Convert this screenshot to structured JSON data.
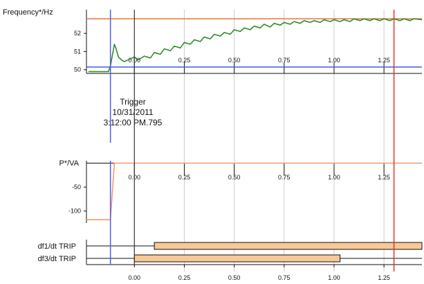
{
  "colors": {
    "frequency_line": "#2e8b2e",
    "upper_limit_line": "#e8743b",
    "lower_limit_line": "#3a5fe0",
    "trigger_marker": "#4b5ce8",
    "cursor_marker": "#e8302a",
    "power_line": "#f59a6a",
    "trip_bar_fill": "#f8c896",
    "grid": "#cccccc",
    "axis": "#111111"
  },
  "trigger": {
    "title": "Trigger",
    "date": "10/31/2011",
    "time": "3:12:00 PM.795",
    "time_s": -0.12
  },
  "cursor_time_s": 1.3,
  "chart_data": [
    {
      "type": "line",
      "ylabel": "Frequency*/Hz",
      "x_range": [
        -0.24,
        1.44
      ],
      "ylim": [
        49.8,
        53.3
      ],
      "yticks": [
        50,
        51,
        52
      ],
      "ytick_labels": [
        "50",
        "51",
        "52"
      ],
      "xticks": [
        0,
        0.25,
        0.5,
        0.75,
        1.0,
        1.25
      ],
      "xtick_labels": [
        "0.00",
        "0.25",
        "0.50",
        "0.75",
        "1.00",
        "1.25"
      ],
      "grid": true,
      "reference_lines": {
        "upper": 52.8,
        "lower": 50.15
      },
      "x": [
        -0.23,
        -0.2,
        -0.17,
        -0.13,
        -0.12,
        -0.11,
        -0.1,
        -0.09,
        -0.08,
        -0.07,
        -0.06,
        -0.05,
        -0.04,
        -0.03,
        -0.02,
        -0.01,
        0,
        0.02,
        0.05,
        0.08,
        0.1,
        0.13,
        0.15,
        0.18,
        0.2,
        0.23,
        0.25,
        0.28,
        0.3,
        0.33,
        0.35,
        0.38,
        0.4,
        0.43,
        0.45,
        0.48,
        0.5,
        0.53,
        0.55,
        0.58,
        0.6,
        0.63,
        0.65,
        0.68,
        0.7,
        0.73,
        0.75,
        0.78,
        0.8,
        0.83,
        0.85,
        0.88,
        0.9,
        0.93,
        0.95,
        0.98,
        1.0,
        1.03,
        1.05,
        1.08,
        1.1,
        1.13,
        1.15,
        1.18,
        1.2,
        1.23,
        1.25,
        1.28,
        1.3,
        1.33,
        1.35,
        1.38,
        1.4,
        1.44
      ],
      "y": [
        49.9,
        49.9,
        49.9,
        49.9,
        50.2,
        50.8,
        51.4,
        51.1,
        50.7,
        50.6,
        50.5,
        50.45,
        50.5,
        50.55,
        50.6,
        50.65,
        50.7,
        50.55,
        50.75,
        50.65,
        50.95,
        50.85,
        51.15,
        51.05,
        51.3,
        51.2,
        51.5,
        51.4,
        51.65,
        51.55,
        51.8,
        51.7,
        51.95,
        51.85,
        52.05,
        51.95,
        52.2,
        52.1,
        52.3,
        52.2,
        52.4,
        52.3,
        52.5,
        52.35,
        52.55,
        52.45,
        52.6,
        52.5,
        52.65,
        52.55,
        52.7,
        52.6,
        52.7,
        52.6,
        52.75,
        52.65,
        52.75,
        52.65,
        52.75,
        52.65,
        52.8,
        52.7,
        52.8,
        52.7,
        52.8,
        52.7,
        52.8,
        52.7,
        52.8,
        52.7,
        52.8,
        52.7,
        52.8,
        52.75
      ]
    },
    {
      "type": "line",
      "ylabel": "P*/VA",
      "x_range": [
        -0.24,
        1.44
      ],
      "ylim": [
        -125,
        5
      ],
      "yticks": [
        -50,
        -100
      ],
      "ytick_labels": [
        "-50",
        "-100"
      ],
      "xticks": [
        0,
        0.25,
        0.5,
        0.75,
        1.0,
        1.25
      ],
      "xtick_labels": [
        "0.00",
        "0.25",
        "0.50",
        "0.75",
        "1.00",
        "1.25"
      ],
      "grid": true,
      "x": [
        -0.24,
        -0.12,
        -0.1,
        1.44
      ],
      "y": [
        -118,
        -118,
        0,
        0
      ]
    },
    {
      "type": "gantt",
      "x_range": [
        -0.24,
        1.44
      ],
      "xticks": [
        0,
        0.25,
        0.5,
        0.75,
        1.0,
        1.25
      ],
      "xtick_labels": [
        "0.00",
        "0.25",
        "0.50",
        "0.75",
        "1.00",
        "1.25"
      ],
      "grid": true,
      "rows": [
        {
          "label": "df1/dt TRIP",
          "start": 0.1,
          "end": 1.44
        },
        {
          "label": "df3/dt TRIP",
          "start": 0.0,
          "end": 1.03
        }
      ]
    }
  ]
}
